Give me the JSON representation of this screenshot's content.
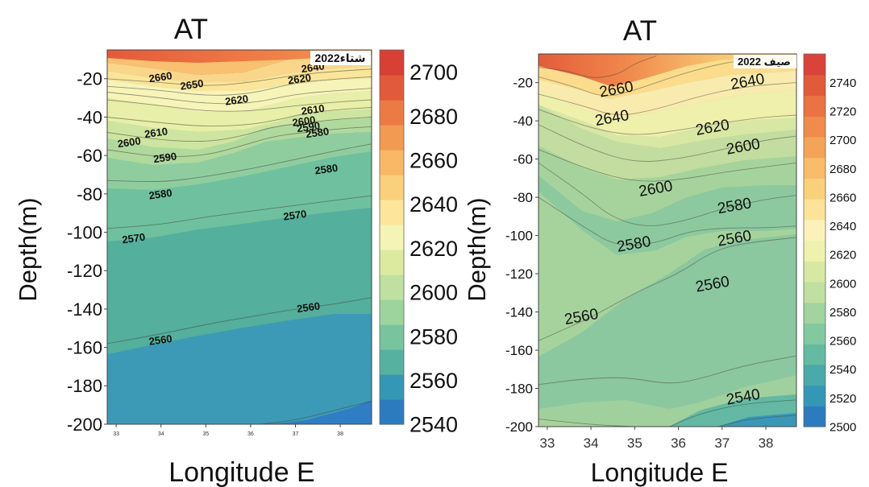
{
  "chart_data": [
    {
      "type": "contour",
      "title": "AT",
      "season_label": "شتاء2022",
      "xlabel": "Longitude E",
      "ylabel": "Depth(m)",
      "xlim": [
        32.8,
        38.7
      ],
      "ylim": [
        -200,
        -5
      ],
      "x_ticks": [
        33,
        34,
        35,
        36,
        37,
        38
      ],
      "x_tick_labels": [
        "33",
        "34",
        "35",
        "36",
        "37",
        "38"
      ],
      "y_ticks": [
        -20,
        -40,
        -60,
        -80,
        -100,
        -120,
        -140,
        -160,
        -180,
        -200
      ],
      "y_tick_labels": [
        "-20",
        "-40",
        "-60",
        "-80",
        "-100",
        "-120",
        "-140",
        "-160",
        "-180",
        "-200"
      ],
      "colorbar": {
        "min": 2540,
        "max": 2710,
        "ticks": [
          2700,
          2680,
          2660,
          2640,
          2620,
          2600,
          2580,
          2560,
          2540
        ],
        "tick_labels": [
          "2700",
          "2680",
          "2660",
          "2640",
          "2620",
          "2600",
          "2580",
          "2560",
          "2540"
        ]
      },
      "contour_lines": [
        {
          "level": 2650,
          "points": [
            [
              32.8,
              -20
            ],
            [
              34,
              -22
            ],
            [
              35,
              -24
            ],
            [
              36,
              -22
            ],
            [
              37,
              -18
            ],
            [
              38,
              -16
            ],
            [
              38.7,
              -15
            ]
          ]
        },
        {
          "level": 2640,
          "points": [
            [
              32.8,
              -24
            ],
            [
              34,
              -26
            ],
            [
              35,
              -29
            ],
            [
              36,
              -28
            ],
            [
              37,
              -22
            ],
            [
              38,
              -20
            ],
            [
              38.7,
              -19
            ]
          ]
        },
        {
          "level": 2630,
          "points": [
            [
              32.8,
              -27
            ],
            [
              34,
              -30
            ],
            [
              35,
              -33
            ],
            [
              36,
              -33
            ],
            [
              37,
              -28
            ],
            [
              38,
              -26
            ],
            [
              38.7,
              -25
            ]
          ]
        },
        {
          "level": 2620,
          "points": [
            [
              32.8,
              -31
            ],
            [
              34,
              -34
            ],
            [
              35,
              -37
            ],
            [
              36,
              -37
            ],
            [
              37,
              -34
            ],
            [
              38,
              -32
            ],
            [
              38.7,
              -31
            ]
          ]
        },
        {
          "level": 2610,
          "points": [
            [
              32.8,
              -40
            ],
            [
              34,
              -43
            ],
            [
              35,
              -45
            ],
            [
              36,
              -44
            ],
            [
              36.7,
              -41
            ],
            [
              37.2,
              -38
            ],
            [
              38,
              -36
            ],
            [
              38.7,
              -35
            ]
          ]
        },
        {
          "level": 2600,
          "points": [
            [
              32.8,
              -48
            ],
            [
              34,
              -52
            ],
            [
              35,
              -53
            ],
            [
              35.8,
              -50
            ],
            [
              36.5,
              -45
            ],
            [
              37.2,
              -43
            ],
            [
              38,
              -41
            ],
            [
              38.7,
              -40
            ]
          ]
        },
        {
          "level": 2590,
          "points": [
            [
              32.8,
              -57
            ],
            [
              34,
              -61
            ],
            [
              35,
              -60
            ],
            [
              35.8,
              -55
            ],
            [
              36.5,
              -50
            ],
            [
              37.2,
              -48
            ],
            [
              38,
              -46
            ],
            [
              38.7,
              -45
            ]
          ]
        },
        {
          "level": 2580,
          "points": [
            [
              32.8,
              -73
            ],
            [
              34,
              -74
            ],
            [
              35,
              -71
            ],
            [
              36,
              -67
            ],
            [
              37,
              -62
            ],
            [
              38,
              -57
            ],
            [
              38.7,
              -54
            ]
          ]
        },
        {
          "level": 2570,
          "points": [
            [
              32.8,
              -98
            ],
            [
              34,
              -96
            ],
            [
              35,
              -92
            ],
            [
              36,
              -89
            ],
            [
              37,
              -86
            ],
            [
              38,
              -83
            ],
            [
              38.7,
              -81
            ]
          ]
        },
        {
          "level": 2560,
          "points": [
            [
              32.8,
              -158
            ],
            [
              34,
              -153
            ],
            [
              35,
              -148
            ],
            [
              36,
              -144
            ],
            [
              37,
              -140
            ],
            [
              38,
              -137
            ],
            [
              38.7,
              -134
            ]
          ]
        },
        {
          "level": 2550,
          "points": [
            [
              36.2,
              -200
            ],
            [
              37,
              -198
            ],
            [
              38,
              -192
            ],
            [
              38.7,
              -188
            ]
          ]
        }
      ],
      "contour_labels": [
        {
          "text": "2660",
          "x": 34.0,
          "y": -21
        },
        {
          "text": "2650",
          "x": 34.7,
          "y": -25
        },
        {
          "text": "2640",
          "x": 37.4,
          "y": -16
        },
        {
          "text": "2620",
          "x": 37.1,
          "y": -22
        },
        {
          "text": "2620",
          "x": 35.7,
          "y": -33
        },
        {
          "text": "2610",
          "x": 37.4,
          "y": -38
        },
        {
          "text": "2600",
          "x": 37.2,
          "y": -44
        },
        {
          "text": "2590",
          "x": 37.3,
          "y": -47
        },
        {
          "text": "2580",
          "x": 37.5,
          "y": -50
        },
        {
          "text": "2610",
          "x": 33.9,
          "y": -50
        },
        {
          "text": "2600",
          "x": 33.3,
          "y": -55
        },
        {
          "text": "2590",
          "x": 34.1,
          "y": -63
        },
        {
          "text": "2580",
          "x": 37.7,
          "y": -69
        },
        {
          "text": "2580",
          "x": 34.0,
          "y": -82
        },
        {
          "text": "2570",
          "x": 37.0,
          "y": -93
        },
        {
          "text": "2570",
          "x": 33.4,
          "y": -105
        },
        {
          "text": "2560",
          "x": 37.3,
          "y": -141
        },
        {
          "text": "2560",
          "x": 34.0,
          "y": -158
        }
      ]
    },
    {
      "type": "contour",
      "title": "AT",
      "season_label": "صيف 2022",
      "xlabel": "Longitude E",
      "ylabel": "Depth(m)",
      "xlim": [
        32.8,
        38.7
      ],
      "ylim": [
        -200,
        -5
      ],
      "x_ticks": [
        33,
        34,
        35,
        36,
        37,
        38
      ],
      "x_tick_labels": [
        "33",
        "34",
        "35",
        "36",
        "37",
        "38"
      ],
      "y_ticks": [
        -20,
        -40,
        -60,
        -80,
        -100,
        -120,
        -140,
        -160,
        -180,
        -200
      ],
      "y_tick_labels": [
        "-20",
        "-40",
        "-60",
        "-80",
        "-100",
        "-120",
        "-140",
        "-160",
        "-180",
        "-200"
      ],
      "colorbar": {
        "min": 2500,
        "max": 2760,
        "ticks": [
          2740,
          2720,
          2700,
          2680,
          2660,
          2640,
          2620,
          2600,
          2580,
          2560,
          2540,
          2520,
          2500
        ],
        "tick_labels": [
          "2740",
          "2720",
          "2700",
          "2680",
          "2660",
          "2640",
          "2620",
          "2600",
          "2580",
          "2560",
          "2540",
          "2520",
          "2500"
        ]
      },
      "contour_lines": [
        {
          "level": 2680,
          "points": [
            [
              32.8,
              -12
            ],
            [
              33.5,
              -14
            ],
            [
              34,
              -18
            ],
            [
              34.6,
              -16
            ],
            [
              35,
              -10
            ],
            [
              35.5,
              -6
            ]
          ]
        },
        {
          "level": 2660,
          "points": [
            [
              32.8,
              -17
            ],
            [
              33.6,
              -22
            ],
            [
              34.3,
              -28
            ],
            [
              35,
              -24
            ],
            [
              36,
              -16
            ],
            [
              36.8,
              -11
            ],
            [
              37.5,
              -8
            ],
            [
              38.7,
              -7
            ]
          ]
        },
        {
          "level": 2640,
          "points": [
            [
              32.8,
              -26
            ],
            [
              33.8,
              -32
            ],
            [
              34.6,
              -38
            ],
            [
              35.5,
              -34
            ],
            [
              36.5,
              -27
            ],
            [
              37.5,
              -22
            ],
            [
              38.7,
              -20
            ]
          ]
        },
        {
          "level": 2620,
          "points": [
            [
              32.8,
              -34
            ],
            [
              34,
              -44
            ],
            [
              35,
              -48
            ],
            [
              36,
              -45
            ],
            [
              37,
              -41
            ],
            [
              38,
              -38
            ],
            [
              38.7,
              -37
            ]
          ]
        },
        {
          "level": 2600,
          "points": [
            [
              32.8,
              -42
            ],
            [
              34,
              -55
            ],
            [
              35,
              -62
            ],
            [
              36,
              -60
            ],
            [
              37,
              -55
            ],
            [
              38,
              -50
            ],
            [
              38.7,
              -48
            ]
          ]
        },
        {
          "level": 2590,
          "points": [
            [
              32.8,
              -55
            ],
            [
              34,
              -66
            ],
            [
              35,
              -72
            ],
            [
              36,
              -71
            ],
            [
              37,
              -67
            ],
            [
              38,
              -64
            ],
            [
              38.7,
              -62
            ]
          ]
        },
        {
          "level": 2580,
          "points": [
            [
              32.8,
              -62
            ],
            [
              33.8,
              -78
            ],
            [
              34.5,
              -91
            ],
            [
              35.3,
              -96
            ],
            [
              36.2,
              -92
            ],
            [
              37,
              -86
            ],
            [
              38,
              -81
            ],
            [
              38.7,
              -79
            ]
          ]
        },
        {
          "level": 2570,
          "points": [
            [
              32.8,
              -80
            ],
            [
              33.8,
              -95
            ],
            [
              34.6,
              -106
            ],
            [
              35.5,
              -104
            ],
            [
              36.2,
              -98
            ],
            [
              37,
              -96
            ],
            [
              38,
              -96
            ],
            [
              38.7,
              -95
            ]
          ]
        },
        {
          "level": 2560,
          "points": [
            [
              32.8,
              -155
            ],
            [
              34,
              -143
            ],
            [
              35,
              -130
            ],
            [
              36,
              -120
            ],
            [
              36.8,
              -108
            ],
            [
              37.5,
              -104
            ],
            [
              38.7,
              -101
            ]
          ]
        },
        {
          "level": 2550,
          "points": [
            [
              32.8,
              -178
            ],
            [
              33.8,
              -175
            ],
            [
              34.8,
              -174
            ],
            [
              35.8,
              -178
            ],
            [
              36.5,
              -175
            ],
            [
              37.5,
              -168
            ],
            [
              38.7,
              -163
            ]
          ]
        },
        {
          "level": 2540,
          "points": [
            [
              32.8,
              -196
            ],
            [
              34,
              -199
            ],
            [
              35,
              -200
            ]
          ]
        },
        {
          "level": 2540,
          "points": [
            [
              35.8,
              -200
            ],
            [
              36.5,
              -193
            ],
            [
              37.5,
              -188
            ],
            [
              38.7,
              -186
            ]
          ]
        },
        {
          "level": 2530,
          "points": [
            [
              36.9,
              -200
            ],
            [
              37.6,
              -196
            ],
            [
              38.7,
              -194
            ]
          ]
        }
      ],
      "contour_labels": [
        {
          "text": "2660",
          "x": 34.6,
          "y": -26
        },
        {
          "text": "2640",
          "x": 37.6,
          "y": -22
        },
        {
          "text": "2640",
          "x": 34.5,
          "y": -41
        },
        {
          "text": "2620",
          "x": 36.8,
          "y": -46
        },
        {
          "text": "2600",
          "x": 37.5,
          "y": -56
        },
        {
          "text": "2600",
          "x": 35.5,
          "y": -78
        },
        {
          "text": "2580",
          "x": 37.3,
          "y": -87
        },
        {
          "text": "2560",
          "x": 37.3,
          "y": -104
        },
        {
          "text": "2580",
          "x": 35.0,
          "y": -107
        },
        {
          "text": "2560",
          "x": 36.8,
          "y": -128
        },
        {
          "text": "2560",
          "x": 33.8,
          "y": -145
        },
        {
          "text": "2540",
          "x": 37.5,
          "y": -187
        }
      ]
    }
  ]
}
